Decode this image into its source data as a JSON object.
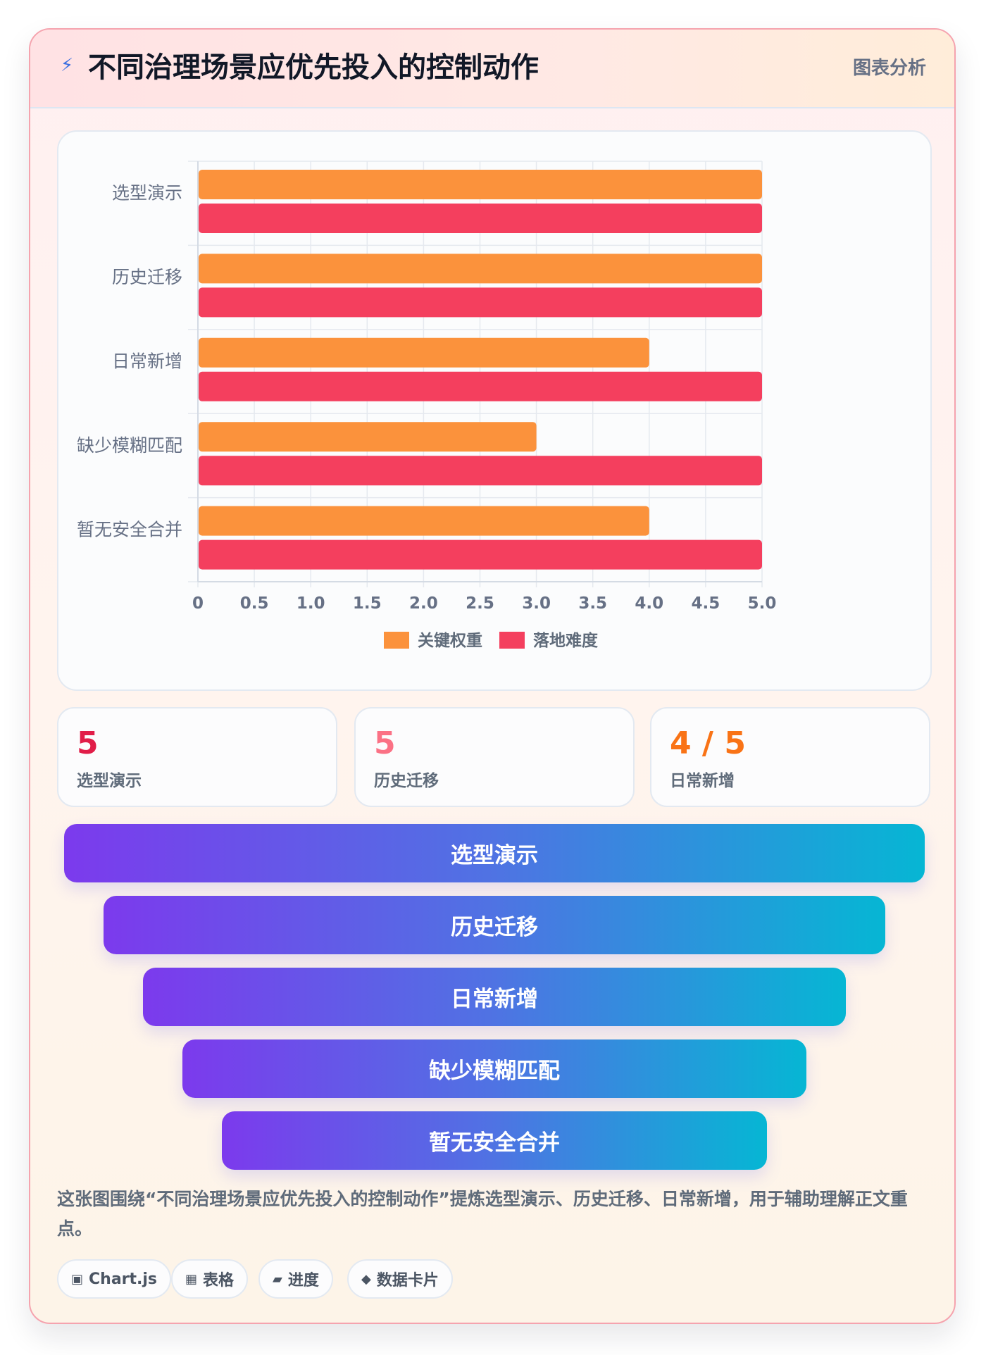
{
  "header": {
    "title": "不同治理场景应优先投入的控制动作",
    "tag": "图表分析"
  },
  "chart_data": {
    "type": "bar",
    "orientation": "horizontal",
    "categories": [
      "选型演示",
      "历史迁移",
      "日常新增",
      "缺少模糊匹配",
      "暂无安全合并"
    ],
    "series": [
      {
        "name": "关键权重",
        "color": "#fb923c",
        "values": [
          5,
          5,
          4,
          3,
          4
        ]
      },
      {
        "name": "落地难度",
        "color": "#f43f5e",
        "values": [
          5,
          5,
          5,
          5,
          5
        ]
      }
    ],
    "xlim": [
      0,
      5
    ],
    "xticks": [
      "0",
      "0.5",
      "1.0",
      "1.5",
      "2.0",
      "2.5",
      "3.0",
      "3.5",
      "4.0",
      "4.5",
      "5.0"
    ],
    "grid": true,
    "legend_position": "bottom"
  },
  "stats": [
    {
      "value": "5",
      "label": "选型演示",
      "color": "#e11d48"
    },
    {
      "value": "5",
      "label": "历史迁移",
      "color": "#fb7185"
    },
    {
      "value": "4 / 5",
      "label": "日常新增",
      "color": "#f97316"
    }
  ],
  "funnel": [
    "选型演示",
    "历史迁移",
    "日常新增",
    "缺少模糊匹配",
    "暂无安全合并"
  ],
  "description": "这张图围绕“不同治理场景应优先投入的控制动作”提炼选型演示、历史迁移、日常新增，用于辅助理解正文重点。",
  "chips": [
    {
      "icon": "▣",
      "icon_name": "chart-icon",
      "label": "Chart.js"
    },
    {
      "icon": "▦",
      "icon_name": "table-icon",
      "label": "表格"
    },
    {
      "icon": "▰",
      "icon_name": "progress-icon",
      "label": "进度"
    },
    {
      "icon": "◆",
      "icon_name": "data-card-icon",
      "label": "数据卡片"
    }
  ]
}
